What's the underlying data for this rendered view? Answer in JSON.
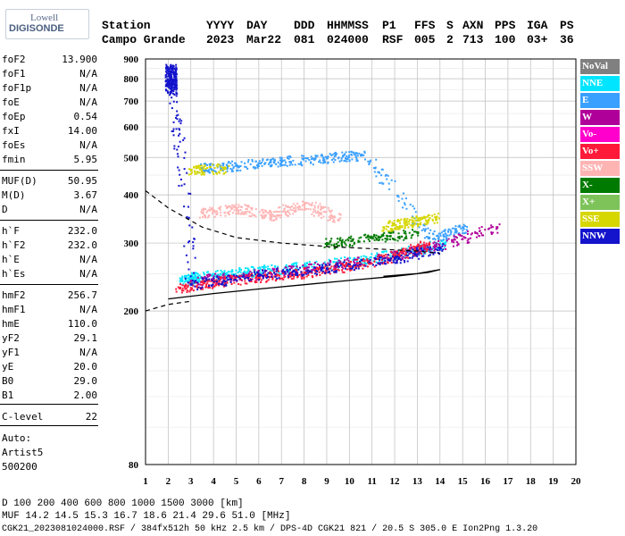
{
  "logo": {
    "line1": "Lowell",
    "line2": "DIGISONDE"
  },
  "header": {
    "station_label": "Station",
    "station_name": "Campo Grande",
    "yyyy_label": "YYYY",
    "yyyy": "2023",
    "day_label": "DAY",
    "day": "Mar22",
    "ddd_label": "DDD",
    "ddd": "081",
    "hhmmss_label": "HHMMSS",
    "hhmmss": "024000",
    "p1_label": "P1",
    "p1": "RSF",
    "ffs_label": "FFS",
    "ffs": "005",
    "s_label": "S",
    "s": "2",
    "axn_label": "AXN",
    "axn": "713",
    "pps_label": "PPS",
    "pps": "100",
    "iga_label": "IGA",
    "iga": "03+",
    "ps_label": "PS",
    "ps": "36"
  },
  "params": [
    {
      "label": "foF2",
      "value": "13.900"
    },
    {
      "label": "foF1",
      "value": "N/A"
    },
    {
      "label": "foF1p",
      "value": "N/A"
    },
    {
      "label": "foE",
      "value": "N/A"
    },
    {
      "label": "foEp",
      "value": "0.54"
    },
    {
      "label": "fxI",
      "value": "14.00"
    },
    {
      "label": "foEs",
      "value": "N/A"
    },
    {
      "label": "fmin",
      "value": "5.95"
    },
    {
      "label": "MUF(D)",
      "value": "50.95"
    },
    {
      "label": "M(D)",
      "value": "3.67"
    },
    {
      "label": "D",
      "value": "N/A"
    },
    {
      "label": "h`F",
      "value": "232.0"
    },
    {
      "label": "h`F2",
      "value": "232.0"
    },
    {
      "label": "h`E",
      "value": "N/A"
    },
    {
      "label": "h`Es",
      "value": "N/A"
    },
    {
      "label": "hmF2",
      "value": "256.7"
    },
    {
      "label": "hmF1",
      "value": "N/A"
    },
    {
      "label": "hmE",
      "value": "110.0"
    },
    {
      "label": "yF2",
      "value": "29.1"
    },
    {
      "label": "yF1",
      "value": "N/A"
    },
    {
      "label": "yE",
      "value": "20.0"
    },
    {
      "label": "B0",
      "value": "29.0"
    },
    {
      "label": "B1",
      "value": "2.00"
    },
    {
      "label": "C-level",
      "value": "22"
    }
  ],
  "misc": {
    "auto": "Auto:",
    "artist": "Artist5",
    "code": "500200"
  },
  "legend": [
    {
      "name": "NoVal",
      "color": "#808080"
    },
    {
      "name": "NNE",
      "color": "#00e5ff"
    },
    {
      "name": "E",
      "color": "#3aa0ff"
    },
    {
      "name": "W",
      "color": "#b0009a"
    },
    {
      "name": "Vo-",
      "color": "#ff00cc"
    },
    {
      "name": "Vo+",
      "color": "#ff1a3a"
    },
    {
      "name": "SSW",
      "color": "#ffb4b4"
    },
    {
      "name": "X-",
      "color": "#007a00"
    },
    {
      "name": "X+",
      "color": "#7dc35a"
    },
    {
      "name": "SSE",
      "color": "#d6d600"
    },
    {
      "name": "NNW",
      "color": "#1414cc"
    }
  ],
  "footer": {
    "line1": "D      100  200  400  600  800 1000 1500 3000 [km]",
    "line2": "MUF  14.2 14.5 15.3 16.7 18.6 21.4 29.6 51.0 [MHz]",
    "line3": "CGK21_2023081024000.RSF / 384fx512h 50 kHz 2.5 km / DPS-4D CGK21 821 / 20.5 S 305.0 E Ion2Png 1.3.20"
  },
  "chart_data": {
    "type": "scatter",
    "xlabel": "",
    "ylabel": "",
    "xlim": [
      1,
      20
    ],
    "ylim": [
      80,
      900
    ],
    "x_ticks": [
      "1",
      "2",
      "3",
      "4",
      "5",
      "6",
      "7",
      "8",
      "9",
      "10",
      "11",
      "12",
      "13",
      "14",
      "15",
      "16",
      "17",
      "18",
      "19",
      "20"
    ],
    "y_ticks": [
      "80",
      "200",
      "300",
      "400",
      "500",
      "600",
      "700",
      "800",
      "900"
    ],
    "y_scale": "log",
    "grid": true,
    "legend_position": "right",
    "series": [
      {
        "name": "NNE",
        "points": [
          [
            2.6,
            240
          ],
          [
            3.2,
            245
          ],
          [
            4.5,
            250
          ],
          [
            6.0,
            255
          ],
          [
            8.0,
            262
          ],
          [
            10.5,
            272
          ],
          [
            12.5,
            285
          ],
          [
            14.2,
            300
          ]
        ]
      },
      {
        "name": "E",
        "points": [
          [
            3.5,
            470
          ],
          [
            5.0,
            478
          ],
          [
            7.0,
            490
          ],
          [
            9.0,
            500
          ],
          [
            10.5,
            508
          ],
          [
            13.5,
            310
          ],
          [
            15.0,
            330
          ]
        ]
      },
      {
        "name": "W",
        "points": [
          [
            3.0,
            240
          ],
          [
            5.5,
            248
          ],
          [
            8.0,
            258
          ],
          [
            11.5,
            275
          ],
          [
            13.8,
            295
          ],
          [
            16.5,
            330
          ]
        ]
      },
      {
        "name": "Vo+",
        "points": [
          [
            2.5,
            230
          ],
          [
            4.0,
            238
          ],
          [
            6.0,
            245
          ],
          [
            8.0,
            252
          ],
          [
            10.0,
            262
          ],
          [
            12.0,
            278
          ],
          [
            13.5,
            298
          ]
        ]
      },
      {
        "name": "SSW",
        "points": [
          [
            3.5,
            360
          ],
          [
            5.0,
            370
          ],
          [
            6.5,
            355
          ],
          [
            8.0,
            380
          ],
          [
            9.5,
            345
          ]
        ]
      },
      {
        "name": "SSE",
        "points": [
          [
            3.0,
            465
          ],
          [
            4.5,
            470
          ],
          [
            11.5,
            330
          ],
          [
            12.5,
            340
          ],
          [
            13.8,
            350
          ]
        ]
      },
      {
        "name": "X-",
        "points": [
          [
            9.0,
            300
          ],
          [
            11.0,
            310
          ],
          [
            13.0,
            320
          ]
        ]
      },
      {
        "name": "NNW",
        "points": [
          [
            2.1,
            860
          ],
          [
            2.1,
            820
          ],
          [
            2.1,
            780
          ],
          [
            2.1,
            740
          ],
          [
            3.0,
            235
          ],
          [
            6.0,
            248
          ],
          [
            9.0,
            258
          ],
          [
            12.0,
            275
          ],
          [
            14.0,
            292
          ]
        ]
      }
    ],
    "model_profile": {
      "solid": [
        [
          2.0,
          215
        ],
        [
          4.0,
          222
        ],
        [
          6.0,
          228
        ],
        [
          8.0,
          234
        ],
        [
          10.0,
          240
        ],
        [
          12.0,
          246
        ],
        [
          13.5,
          252
        ],
        [
          14.0,
          256
        ],
        [
          13.0,
          250
        ],
        [
          11.5,
          246
        ]
      ],
      "dashed": [
        [
          1.0,
          410
        ],
        [
          2.0,
          370
        ],
        [
          3.5,
          330
        ],
        [
          5.0,
          310
        ],
        [
          7.0,
          300
        ],
        [
          9.0,
          294
        ],
        [
          11.0,
          290
        ],
        [
          13.0,
          286
        ],
        [
          14.0,
          282
        ]
      ],
      "lower_dashed": [
        [
          1.0,
          200
        ],
        [
          2.0,
          208
        ],
        [
          3.0,
          212
        ]
      ]
    }
  }
}
